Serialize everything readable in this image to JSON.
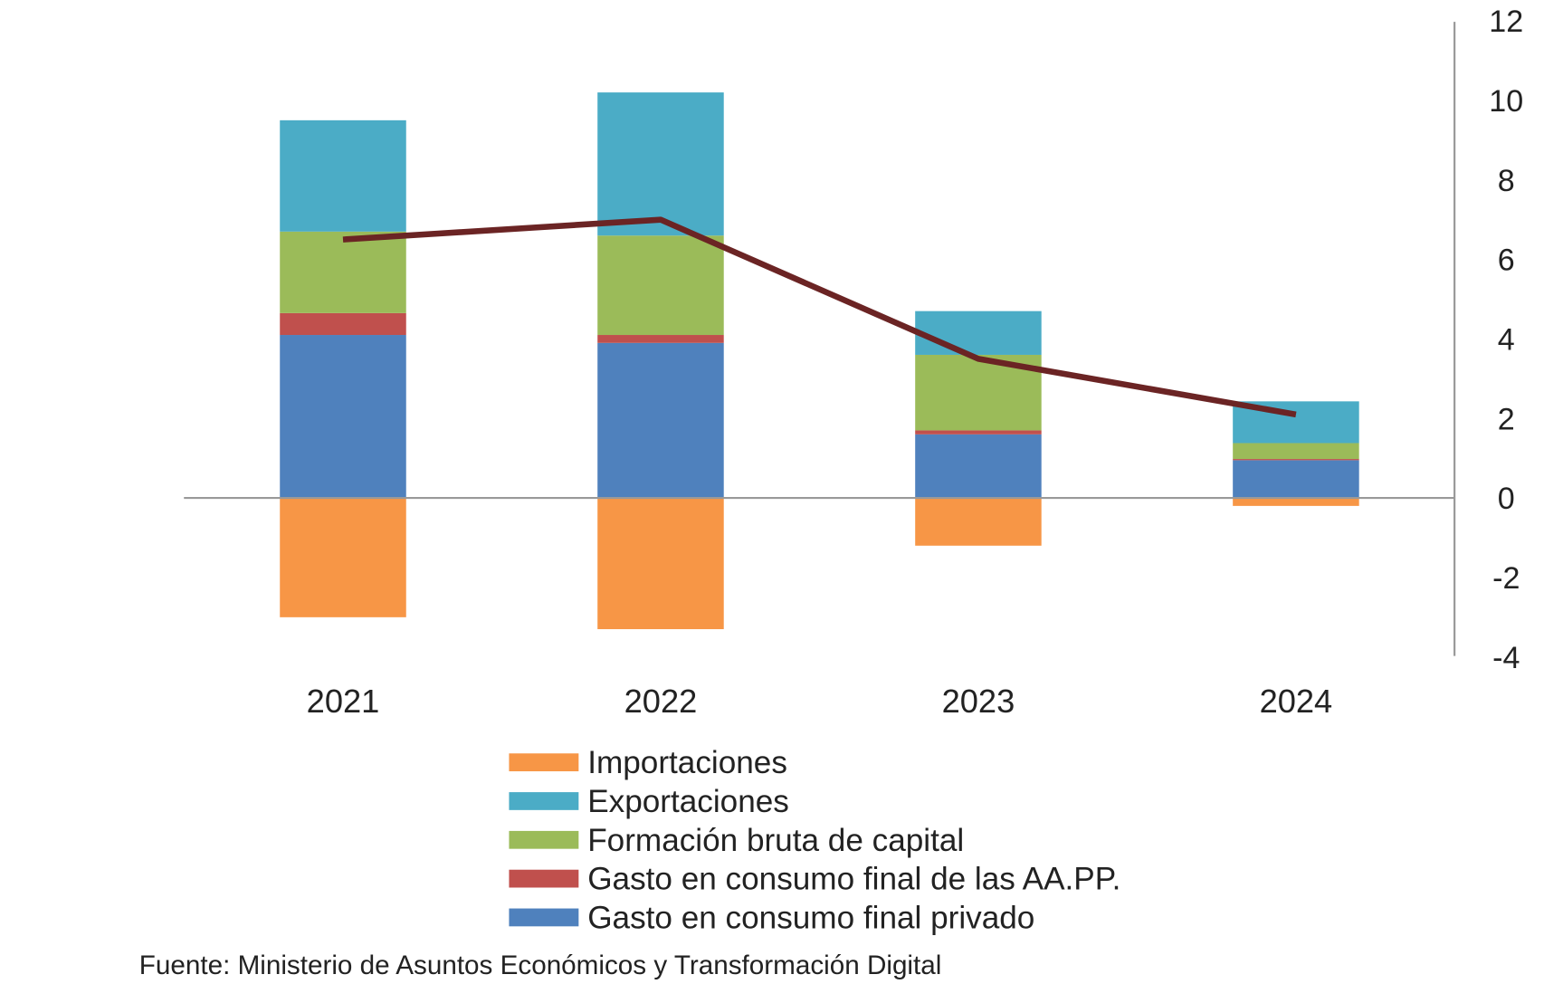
{
  "chart_data": {
    "type": "bar",
    "stacked": true,
    "categories": [
      "2021",
      "2022",
      "2023",
      "2024"
    ],
    "series": [
      {
        "name": "Importaciones",
        "color": "#F79646",
        "values": [
          -3.0,
          -3.3,
          -1.2,
          -0.2
        ]
      },
      {
        "name": "Exportaciones",
        "color": "#4BACC6",
        "values": [
          2.8,
          3.6,
          1.1,
          1.05
        ]
      },
      {
        "name": "Formación bruta de capital",
        "color": "#9BBB59",
        "values": [
          2.05,
          2.5,
          1.9,
          0.4
        ]
      },
      {
        "name": "Gasto en consumo final de las AA.PP.",
        "color": "#C0504D",
        "values": [
          0.55,
          0.2,
          0.1,
          0.03
        ]
      },
      {
        "name": "Gasto en consumo final privado",
        "color": "#4F81BD",
        "values": [
          4.1,
          3.9,
          1.6,
          0.95
        ]
      }
    ],
    "line": {
      "color": "#6B2424",
      "values": [
        6.5,
        7.0,
        3.5,
        2.1
      ]
    },
    "yaxis": {
      "side": "right",
      "ylim": [
        -4,
        12
      ],
      "ticks": [
        "12",
        "10",
        "8",
        "6",
        "4",
        "2",
        "0",
        "-2",
        "-4"
      ]
    },
    "grid": false,
    "legend_placement": "bottom"
  },
  "source": "Fuente: Ministerio de Asuntos Económicos y Transformación Digital"
}
